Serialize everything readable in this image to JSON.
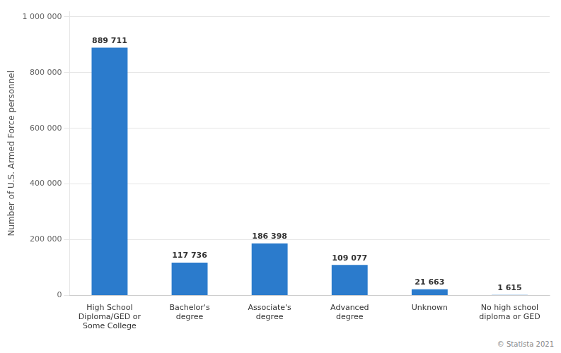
{
  "chart_data": {
    "type": "bar",
    "categories": [
      "High School\nDiploma/GED or\nSome College",
      "Bachelor's\ndegree",
      "Associate's\ndegree",
      "Advanced\ndegree",
      "Unknown",
      "No high school\ndiploma or GED"
    ],
    "values": [
      889711,
      117736,
      186398,
      109077,
      21663,
      1615
    ],
    "value_labels": [
      "889 711",
      "117 736",
      "186 398",
      "109 077",
      "21 663",
      "1 615"
    ],
    "data_labels": true,
    "color": "#2b7bcc",
    "ylabel": "Number of U.S. Armed Force personnel",
    "ylim": [
      0,
      1020000
    ],
    "yticks": [
      0,
      {
        "value": 200000,
        "label": "200 000"
      },
      {
        "value": 400000,
        "label": "400 000"
      },
      {
        "value": 600000,
        "label": "600 000"
      },
      {
        "value": 800000,
        "label": "800 000"
      },
      {
        "value": 1000000,
        "label": "1 000 000"
      }
    ],
    "grid": true,
    "annotations": [
      "© Statista 2021"
    ]
  }
}
